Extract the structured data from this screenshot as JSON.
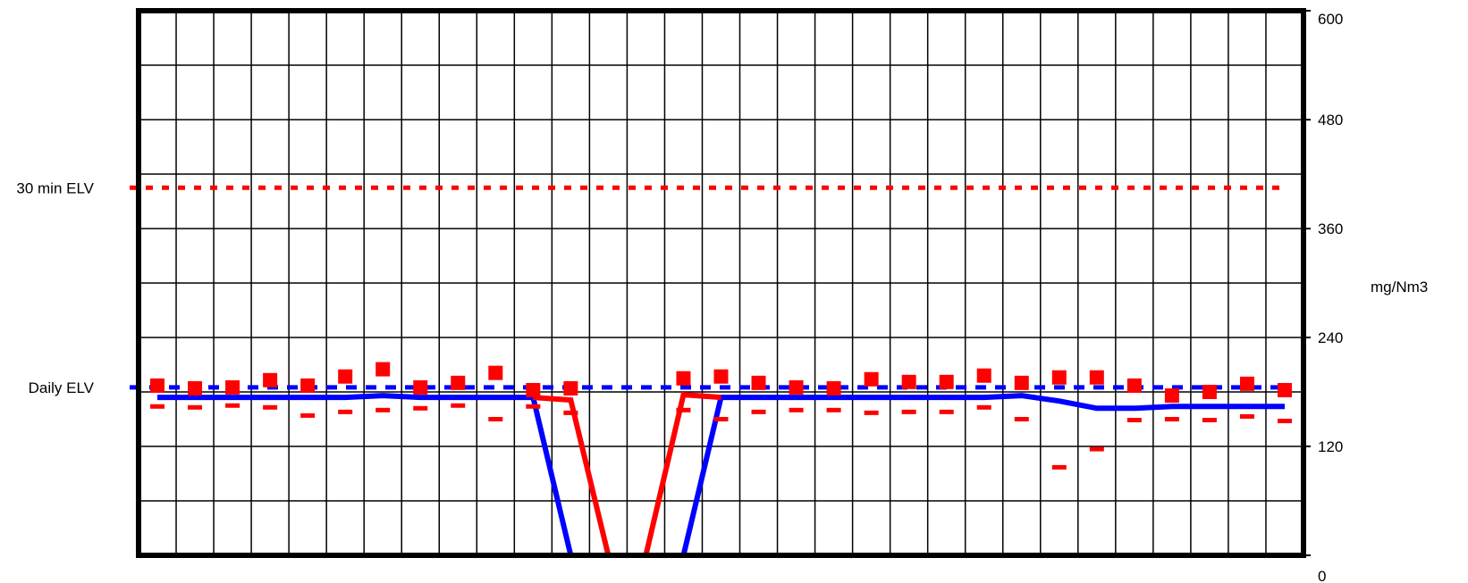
{
  "chart_data": {
    "type": "line",
    "y_range": [
      0,
      600
    ],
    "y_ticks": [
      "0",
      "120",
      "240",
      "360",
      "480",
      "600"
    ],
    "y_unit_label": "mg/Nm3",
    "x_count": 31,
    "grid": true,
    "reference_lines": [
      {
        "label": "30 min ELV",
        "value": 405,
        "color": "#ff0000",
        "style": "dotted"
      },
      {
        "label": "Daily ELV",
        "value": 185,
        "color": "#0000ff",
        "style": "dashed"
      }
    ],
    "series": [
      {
        "kind": "line",
        "color": "#0000ff",
        "values": [
          174,
          174,
          174,
          174,
          174,
          174,
          176,
          174,
          174,
          174,
          174,
          0,
          0,
          0,
          0,
          174,
          174,
          174,
          174,
          174,
          174,
          174,
          174,
          176,
          170,
          162,
          162,
          164,
          164,
          164,
          164
        ]
      },
      {
        "kind": "line",
        "color": "#ff0000",
        "values": [
          null,
          null,
          null,
          null,
          null,
          null,
          null,
          null,
          null,
          null,
          174,
          171,
          0,
          0,
          177,
          174,
          null,
          null,
          null,
          null,
          null,
          null,
          null,
          null,
          null,
          null,
          null,
          null,
          null,
          null,
          null
        ]
      },
      {
        "kind": "markers-square",
        "color": "#ff0000",
        "values": [
          187,
          184,
          185,
          193,
          187,
          197,
          205,
          185,
          190,
          201,
          182,
          184,
          null,
          null,
          195,
          197,
          190,
          185,
          184,
          194,
          191,
          191,
          198,
          190,
          196,
          196,
          187,
          176,
          180,
          189,
          182
        ]
      },
      {
        "kind": "markers-dash",
        "color": "#ff0000",
        "values": [
          164,
          163,
          165,
          163,
          154,
          158,
          160,
          162,
          165,
          150,
          164,
          157,
          null,
          null,
          160,
          150,
          158,
          160,
          160,
          157,
          158,
          158,
          163,
          150,
          97,
          117,
          149,
          150,
          149,
          153,
          148
        ]
      }
    ]
  }
}
